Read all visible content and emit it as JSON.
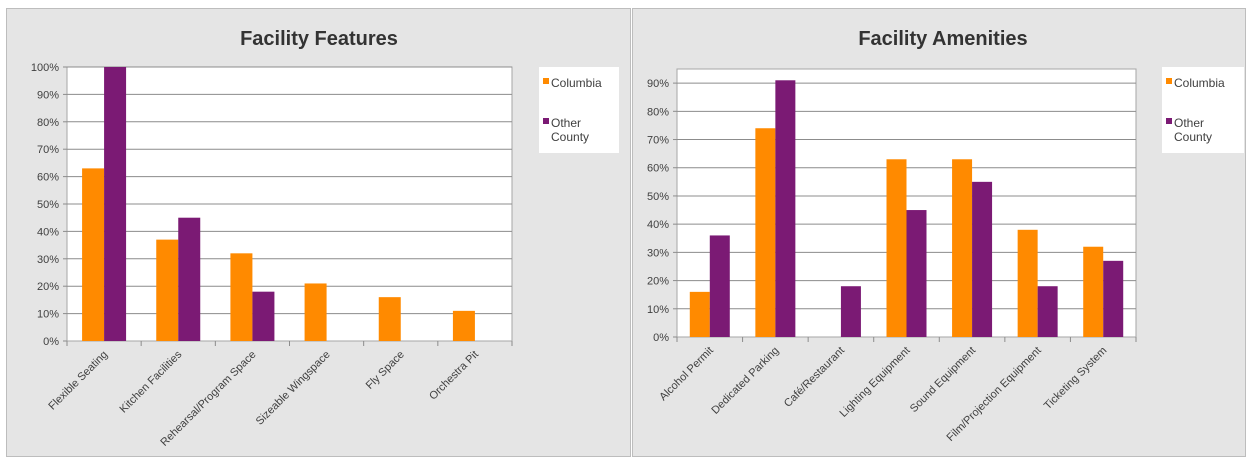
{
  "chart_data": [
    {
      "type": "bar",
      "title": "Facility Features",
      "categories": [
        "Flexible Seating",
        "Kitchen Facilities",
        "Rehearsal/Program Space",
        "Sizeable Wingspace",
        "Fly Space",
        "Orchestra Pit"
      ],
      "series": [
        {
          "name": "Columbia",
          "color": "#ff8a00",
          "values": [
            0.63,
            0.37,
            0.32,
            0.21,
            0.16,
            0.11
          ]
        },
        {
          "name": "Other County",
          "color": "#7b1a74",
          "values": [
            1.0,
            0.45,
            0.18,
            0.0,
            0.0,
            0.0
          ]
        }
      ],
      "ylim": [
        0,
        1.0
      ],
      "yticks": [
        "0%",
        "10%",
        "20%",
        "30%",
        "40%",
        "50%",
        "60%",
        "70%",
        "80%",
        "90%",
        "100%"
      ],
      "xlabel": "",
      "ylabel": "",
      "grid": true,
      "legend_position": "right"
    },
    {
      "type": "bar",
      "title": "Facility Amenities",
      "categories": [
        "Alcohol Permit",
        "Dedicated Parking",
        "Café/Restaurant",
        "Lighting Equipment",
        "Sound Equipment",
        "Film/Projection Equipment",
        "Ticketing System"
      ],
      "series": [
        {
          "name": "Columbia",
          "color": "#ff8a00",
          "values": [
            0.16,
            0.74,
            0.0,
            0.63,
            0.63,
            0.38,
            0.32
          ]
        },
        {
          "name": "Other County",
          "color": "#7b1a74",
          "values": [
            0.36,
            0.91,
            0.18,
            0.45,
            0.55,
            0.18,
            0.27
          ]
        }
      ],
      "ylim": [
        0,
        0.95
      ],
      "yticks": [
        "0%",
        "10%",
        "20%",
        "30%",
        "40%",
        "50%",
        "60%",
        "70%",
        "80%",
        "90%"
      ],
      "xlabel": "",
      "ylabel": "",
      "grid": true,
      "legend_position": "right"
    }
  ]
}
